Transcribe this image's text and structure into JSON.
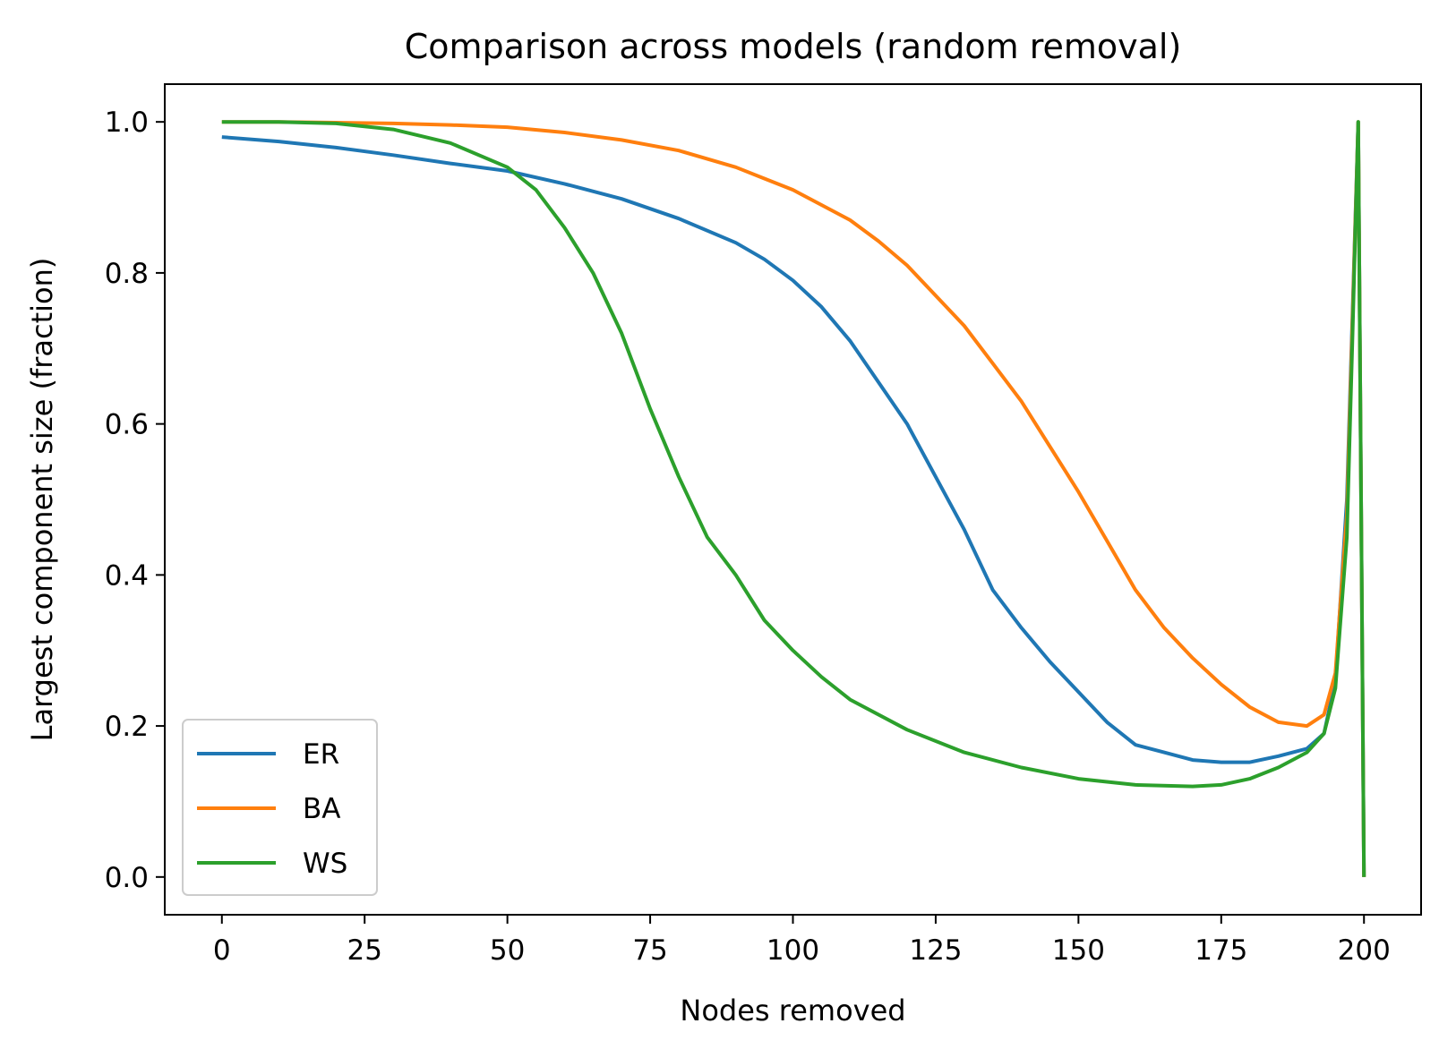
{
  "chart_data": {
    "type": "line",
    "title": "Comparison across models (random removal)",
    "xlabel": "Nodes removed",
    "ylabel": "Largest component size (fraction)",
    "xlim": [
      -10,
      210
    ],
    "ylim": [
      -0.05,
      1.05
    ],
    "xticks": [
      0,
      25,
      50,
      75,
      100,
      125,
      150,
      175,
      200
    ],
    "yticks": [
      0.0,
      0.2,
      0.4,
      0.6,
      0.8,
      1.0
    ],
    "xtick_labels": [
      "0",
      "25",
      "50",
      "75",
      "100",
      "125",
      "150",
      "175",
      "200"
    ],
    "ytick_labels": [
      "0.0",
      "0.2",
      "0.4",
      "0.6",
      "0.8",
      "1.0"
    ],
    "grid": false,
    "legend_position": "lower-left",
    "series": [
      {
        "name": "ER",
        "color": "#1f77b4",
        "x": [
          0,
          10,
          20,
          30,
          40,
          50,
          60,
          70,
          80,
          90,
          95,
          100,
          105,
          110,
          115,
          120,
          125,
          130,
          135,
          140,
          145,
          150,
          155,
          160,
          165,
          170,
          175,
          180,
          185,
          190,
          193,
          195,
          197,
          198,
          199,
          200
        ],
        "y": [
          0.98,
          0.974,
          0.966,
          0.956,
          0.945,
          0.935,
          0.918,
          0.898,
          0.872,
          0.84,
          0.818,
          0.79,
          0.755,
          0.71,
          0.655,
          0.6,
          0.53,
          0.46,
          0.38,
          0.33,
          0.285,
          0.245,
          0.205,
          0.175,
          0.165,
          0.155,
          0.152,
          0.152,
          0.16,
          0.17,
          0.19,
          0.26,
          0.5,
          0.75,
          1.0,
          0.0
        ]
      },
      {
        "name": "BA",
        "color": "#ff7f0e",
        "x": [
          0,
          10,
          20,
          30,
          40,
          50,
          60,
          70,
          80,
          90,
          95,
          100,
          105,
          110,
          115,
          120,
          125,
          130,
          135,
          140,
          145,
          150,
          155,
          160,
          165,
          170,
          175,
          180,
          185,
          190,
          193,
          195,
          197,
          198,
          199,
          200
        ],
        "y": [
          1.0,
          1.0,
          0.999,
          0.998,
          0.996,
          0.993,
          0.986,
          0.976,
          0.962,
          0.94,
          0.925,
          0.91,
          0.89,
          0.87,
          0.842,
          0.81,
          0.77,
          0.73,
          0.68,
          0.63,
          0.57,
          0.51,
          0.445,
          0.38,
          0.33,
          0.29,
          0.255,
          0.225,
          0.205,
          0.2,
          0.215,
          0.27,
          0.48,
          0.74,
          1.0,
          0.0
        ]
      },
      {
        "name": "WS",
        "color": "#2ca02c",
        "x": [
          0,
          10,
          20,
          30,
          40,
          50,
          55,
          60,
          65,
          70,
          75,
          80,
          85,
          90,
          95,
          100,
          105,
          110,
          120,
          130,
          140,
          150,
          160,
          170,
          175,
          180,
          185,
          190,
          193,
          195,
          197,
          198,
          199,
          200
        ],
        "y": [
          1.0,
          1.0,
          0.998,
          0.99,
          0.972,
          0.94,
          0.91,
          0.86,
          0.8,
          0.72,
          0.62,
          0.53,
          0.45,
          0.4,
          0.34,
          0.3,
          0.265,
          0.235,
          0.195,
          0.165,
          0.145,
          0.13,
          0.122,
          0.12,
          0.122,
          0.13,
          0.145,
          0.165,
          0.19,
          0.25,
          0.45,
          0.72,
          1.0,
          0.0
        ]
      }
    ]
  }
}
